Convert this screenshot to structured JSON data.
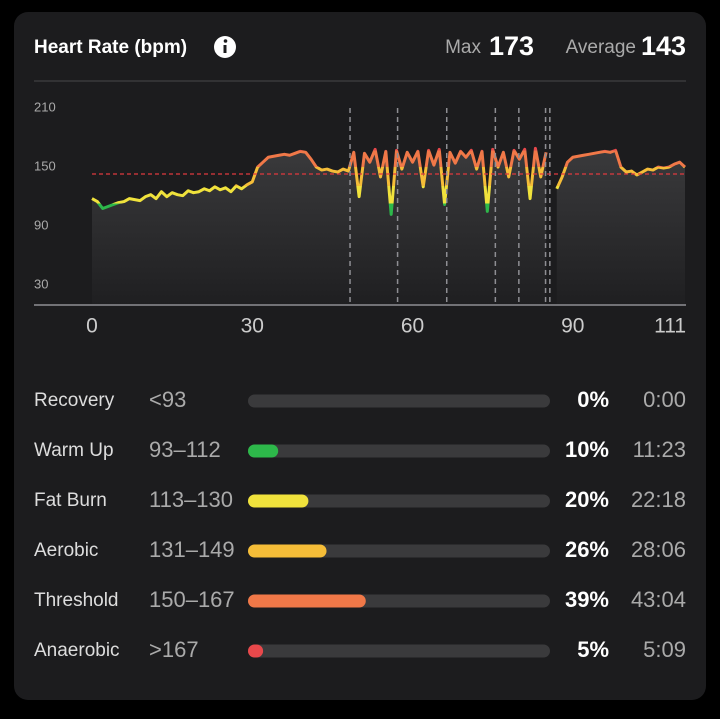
{
  "header": {
    "title": "Heart Rate (bpm)",
    "max_label": "Max",
    "max": 173,
    "average_label": "Average",
    "average": 143
  },
  "chart_data": [
    {
      "type": "line",
      "x": [
        0,
        1,
        2,
        3,
        4,
        5,
        6,
        7,
        8,
        9,
        10,
        11,
        12,
        13,
        14,
        15,
        16,
        17,
        18,
        19,
        20,
        21,
        22,
        23,
        24,
        25,
        26,
        27,
        28,
        29,
        30,
        31,
        32,
        33,
        34,
        35,
        36,
        37,
        38,
        39,
        40,
        41,
        42,
        43,
        44,
        45,
        46,
        47,
        48,
        49,
        50,
        51,
        52,
        53,
        54,
        55,
        56,
        57,
        58,
        59,
        60,
        61,
        62,
        63,
        64,
        65,
        66,
        67,
        68,
        69,
        70,
        71,
        72,
        73,
        74,
        75,
        76,
        77,
        78,
        79,
        80,
        81,
        82,
        83,
        84,
        85,
        86,
        87,
        88,
        89,
        90,
        91,
        92,
        93,
        94,
        95,
        96,
        97,
        98,
        99,
        100,
        101,
        102,
        103,
        104,
        105,
        106,
        107,
        108,
        109,
        110,
        111
      ],
      "values": [
        118,
        115,
        108,
        110,
        112,
        114,
        115,
        118,
        117,
        116,
        120,
        122,
        118,
        125,
        120,
        124,
        122,
        121,
        126,
        124,
        125,
        128,
        126,
        130,
        127,
        129,
        125,
        131,
        128,
        132,
        135,
        150,
        155,
        160,
        161,
        162,
        163,
        162,
        164,
        166,
        165,
        158,
        150,
        147,
        148,
        146,
        145,
        148,
        146,
        165,
        120,
        164,
        155,
        168,
        140,
        166,
        102,
        167,
        148,
        165,
        155,
        166,
        130,
        167,
        152,
        168,
        112,
        165,
        154,
        166,
        160,
        167,
        148,
        166,
        105,
        168,
        150,
        165,
        140,
        167,
        158,
        168,
        118,
        169,
        140,
        165,
        null,
        128,
        140,
        155,
        160,
        161,
        162,
        163,
        164,
        165,
        166,
        165,
        167,
        150,
        145,
        146,
        142,
        145,
        148,
        147,
        150,
        149,
        150,
        153,
        155,
        150
      ],
      "xlim": [
        0,
        111
      ],
      "xticks": [
        0,
        30,
        60,
        90,
        111
      ],
      "ylim": [
        10,
        210
      ],
      "yticks": [
        210,
        150,
        90,
        30
      ],
      "laps": [
        48.3,
        57.2,
        66.4,
        75.5,
        79.9,
        84.9,
        85.7
      ]
    },
    {
      "type": "bar",
      "orientation": "horizontal",
      "categories": [
        "Recovery",
        "Warm Up",
        "Fat Burn",
        "Aerobic",
        "Threshold",
        "Anaerobic"
      ],
      "ranges": [
        "<93",
        "93–112",
        "113–130",
        "131–149",
        "150–167",
        ">167"
      ],
      "values": [
        0,
        10,
        20,
        26,
        39,
        5
      ],
      "value_labels": [
        "0%",
        "10%",
        "20%",
        "26%",
        "39%",
        "5%"
      ],
      "times": [
        "0:00",
        "11:23",
        "22:18",
        "28:06",
        "43:04",
        "5:09"
      ],
      "colors": [
        "#8e8e93",
        "#2db84a",
        "#f0e23c",
        "#f5bd38",
        "#f07848",
        "#e8484b"
      ],
      "xlim": [
        0,
        100
      ]
    }
  ]
}
